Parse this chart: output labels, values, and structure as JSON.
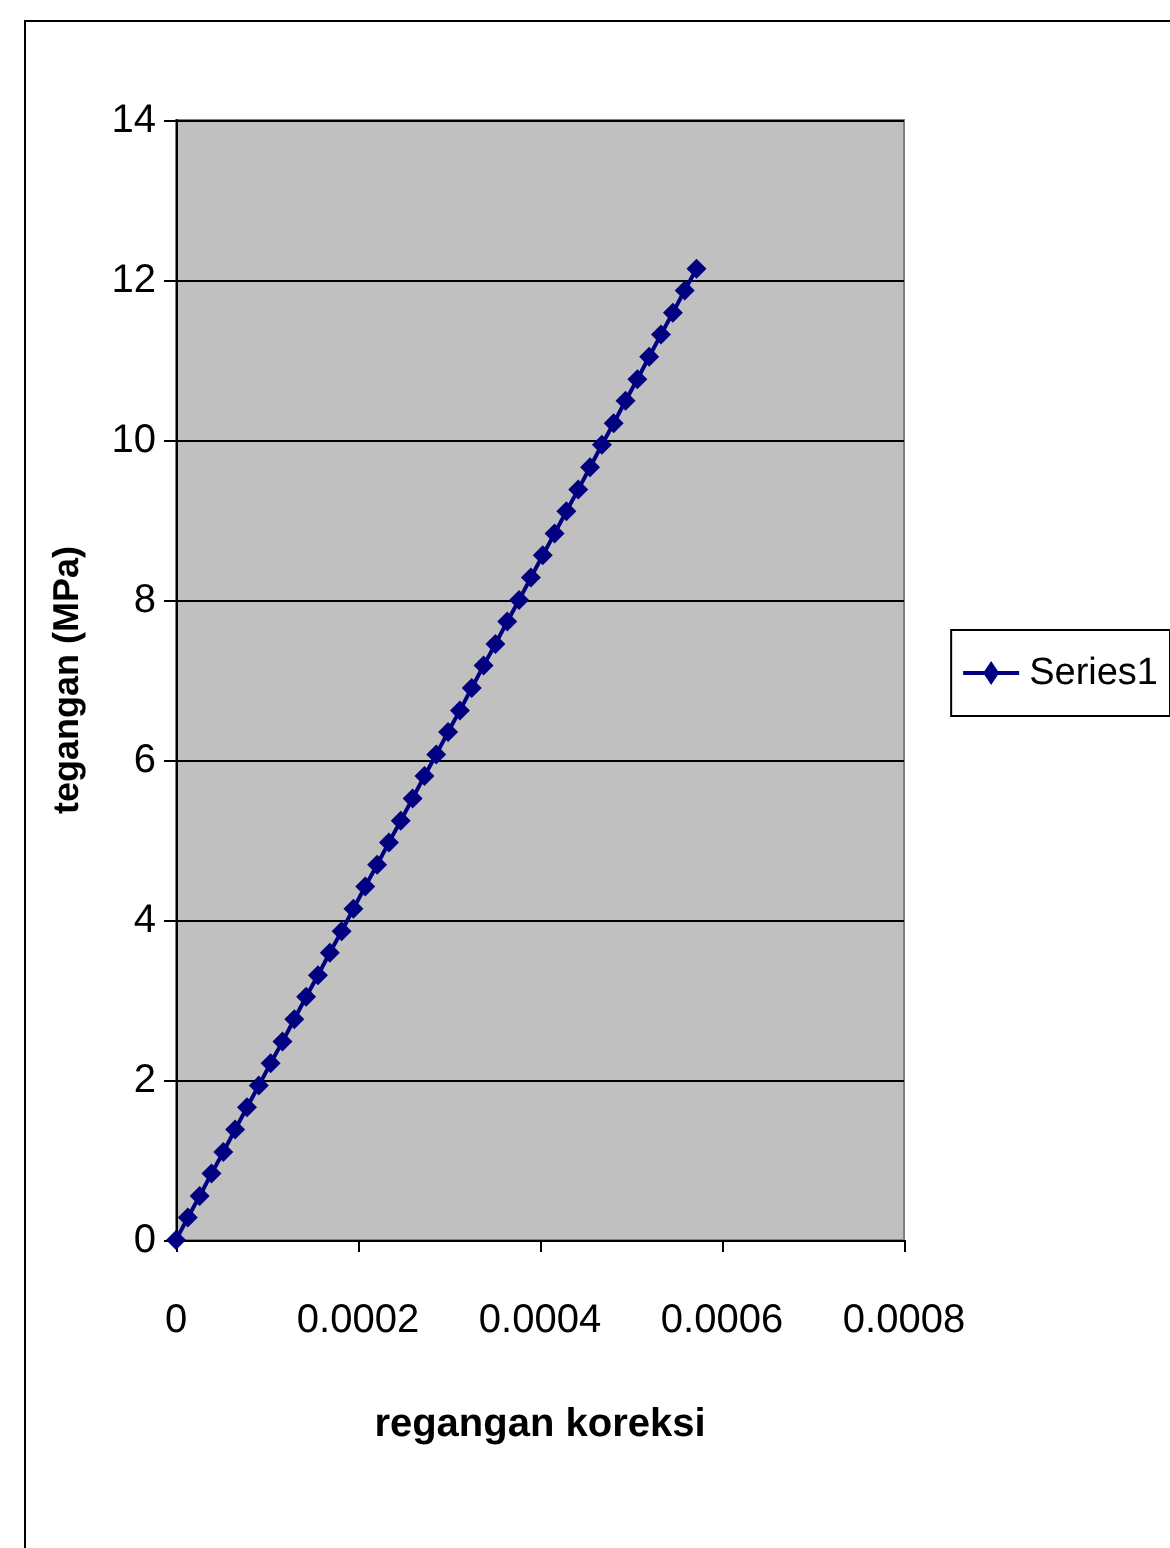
{
  "chart_data": {
    "type": "line",
    "xlabel": "regangan koreksi",
    "ylabel": "tegangan (MPa)",
    "x": [
      0,
      1.3e-05,
      2.6e-05,
      3.9e-05,
      5.2e-05,
      6.5e-05,
      7.8e-05,
      9.1e-05,
      0.000104,
      0.000117,
      0.00013,
      0.000143,
      0.000156,
      0.000169,
      0.000182,
      0.000195,
      0.000208,
      0.000221,
      0.000234,
      0.000247,
      0.00026,
      0.000273,
      0.000286,
      0.000299,
      0.000312,
      0.000325,
      0.000338,
      0.000351,
      0.000364,
      0.000377,
      0.00039,
      0.000403,
      0.000416,
      0.000429,
      0.000442,
      0.000455,
      0.000468,
      0.000481,
      0.000494,
      0.000507,
      0.00052,
      0.000533,
      0.000546,
      0.000559,
      0.000572
    ],
    "series": [
      {
        "name": "Series1",
        "color": "#000080",
        "values": [
          0,
          0.28,
          0.55,
          0.83,
          1.1,
          1.38,
          1.66,
          1.93,
          2.21,
          2.48,
          2.76,
          3.04,
          3.31,
          3.59,
          3.86,
          4.14,
          4.42,
          4.69,
          4.97,
          5.24,
          5.52,
          5.8,
          6.07,
          6.35,
          6.62,
          6.9,
          7.18,
          7.45,
          7.73,
          8.0,
          8.28,
          8.56,
          8.83,
          9.11,
          9.38,
          9.66,
          9.94,
          10.21,
          10.49,
          10.76,
          11.04,
          11.32,
          11.59,
          11.87,
          12.14
        ]
      }
    ],
    "xlim": [
      0,
      0.0008
    ],
    "xticks": [
      0,
      0.0002,
      0.0004,
      0.0006,
      0.0008
    ],
    "ylim": [
      0,
      14
    ],
    "yticks": [
      0,
      2,
      4,
      6,
      8,
      10,
      12,
      14
    ],
    "grid": "y",
    "legend": "right",
    "marker": "diamond",
    "line_style": "solid"
  }
}
